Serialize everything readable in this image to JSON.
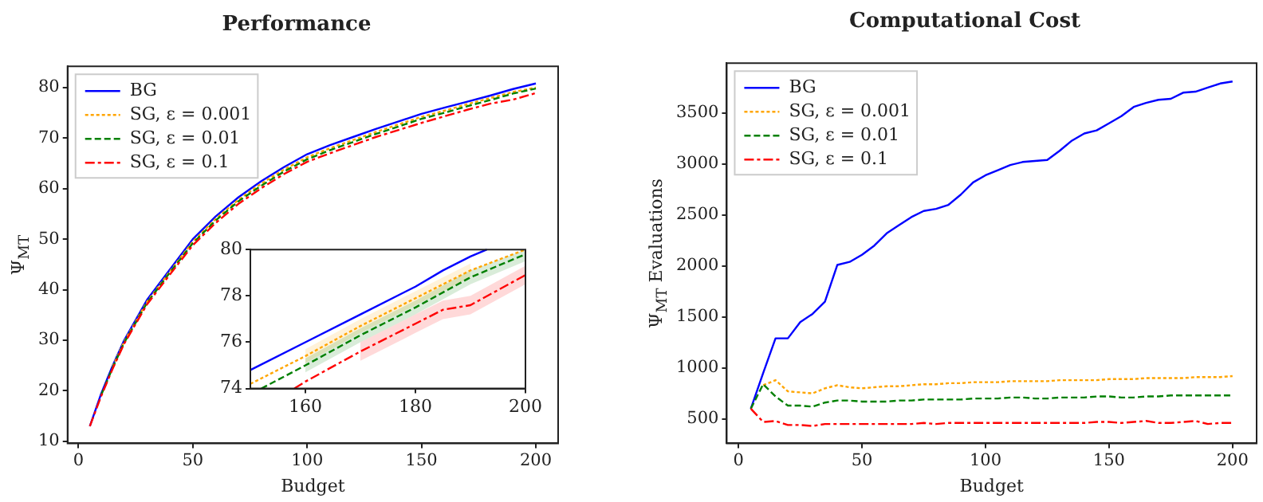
{
  "chart_data": [
    {
      "type": "line",
      "title": "Performance",
      "xlabel": "Budget",
      "ylabel": "Ψ$_{MT}$",
      "x": [
        5,
        10,
        15,
        20,
        30,
        40,
        50,
        60,
        70,
        80,
        90,
        100,
        110,
        120,
        130,
        140,
        150,
        160,
        170,
        180,
        190,
        200
      ],
      "xlim": [
        -4.75,
        209.75
      ],
      "ylim": [
        9.6,
        84.2
      ],
      "xticks": [
        0,
        50,
        100,
        150,
        200
      ],
      "yticks": [
        10,
        20,
        30,
        40,
        50,
        60,
        70,
        80
      ],
      "legend": "top left",
      "grid": false,
      "series": [
        {
          "name": "BG",
          "color": "#0000ff",
          "line_style": "solid",
          "values": [
            13,
            19.5,
            25,
            30,
            38,
            44,
            50,
            54.5,
            58.3,
            61.5,
            64.3,
            66.8,
            68.6,
            70.2,
            71.8,
            73.3,
            74.8,
            76,
            77.2,
            78.4,
            79.7,
            80.8
          ]
        },
        {
          "name": "SG, ε = 0.001",
          "color": "#ffa500",
          "line_style": "dotted",
          "values": [
            null,
            null,
            24.8,
            29.7,
            37.6,
            43.6,
            49.5,
            54,
            57.8,
            61,
            63.8,
            66.2,
            68,
            69.6,
            71.2,
            72.7,
            74.2,
            75.4,
            76.7,
            77.9,
            79.1,
            80
          ]
        },
        {
          "name": "SG, ε = 0.01",
          "color": "#008000",
          "line_style": "dashed",
          "values": [
            null,
            19.2,
            24.6,
            29.5,
            37.4,
            43.4,
            49.2,
            53.7,
            57.5,
            60.6,
            63.4,
            65.8,
            67.6,
            69.2,
            70.8,
            72.3,
            73.8,
            75,
            76.3,
            77.5,
            78.8,
            79.8
          ]
        },
        {
          "name": "SG, ε = 0.1",
          "color": "#ff0000",
          "line_style": "dashdot",
          "values": [
            13,
            19,
            24.4,
            29.3,
            37.1,
            43,
            48.8,
            53.2,
            57,
            60.1,
            62.9,
            65.3,
            67,
            68.6,
            70.2,
            71.6,
            73,
            74.3,
            75.6,
            76.8,
            77.6,
            78.9
          ]
        }
      ]
    },
    {
      "type": "line",
      "xlim": [
        150,
        200
      ],
      "ylim": [
        74,
        80
      ],
      "xticks": [
        160,
        180,
        200
      ],
      "yticks": [
        74,
        76,
        78,
        80
      ],
      "grid": false,
      "series": [
        {
          "color": "#0000ff",
          "line_style": "solid",
          "x": [
            150,
            160,
            170,
            180,
            185,
            190,
            193
          ],
          "values": [
            74.8,
            76,
            77.2,
            78.4,
            79.1,
            79.7,
            80
          ]
        },
        {
          "color": "#ffa500",
          "line_style": "dotted",
          "x": [
            150,
            160,
            170,
            180,
            190,
            200
          ],
          "values": [
            74.2,
            75.4,
            76.7,
            77.9,
            79.1,
            80
          ],
          "lower": [
            null,
            75.1,
            76.4,
            77.6,
            78.8,
            null
          ],
          "upper": [
            null,
            75.7,
            77,
            78.2,
            79.4,
            null
          ]
        },
        {
          "color": "#008000",
          "line_style": "dashed",
          "x": [
            152,
            160,
            170,
            180,
            190,
            200
          ],
          "values": [
            74,
            75,
            76.3,
            77.5,
            78.8,
            79.8
          ],
          "lower": [
            null,
            74.7,
            76,
            77.2,
            78.5,
            79.5
          ],
          "upper": [
            null,
            75.3,
            76.6,
            77.8,
            79.1,
            80
          ]
        },
        {
          "color": "#ff0000",
          "line_style": "dashdot",
          "x": [
            158,
            160,
            170,
            180,
            185,
            190,
            200
          ],
          "values": [
            74,
            74.3,
            75.6,
            76.8,
            77.4,
            77.6,
            78.9
          ],
          "lower": [
            null,
            null,
            75.2,
            76.4,
            77,
            77.2,
            78.5
          ],
          "upper": [
            null,
            null,
            76,
            77.2,
            77.8,
            78,
            79.3
          ]
        }
      ]
    },
    {
      "type": "line",
      "title": "Computational Cost",
      "xlabel": "Budget",
      "ylabel": "Ψ$_{MT}$ Evaluations",
      "x": [
        5,
        10,
        15,
        20,
        25,
        30,
        35,
        40,
        45,
        50,
        55,
        60,
        65,
        70,
        75,
        80,
        85,
        90,
        95,
        100,
        105,
        110,
        115,
        120,
        125,
        130,
        135,
        140,
        145,
        150,
        155,
        160,
        165,
        170,
        175,
        180,
        185,
        190,
        195,
        200
      ],
      "xlim": [
        -4.75,
        209.75
      ],
      "ylim": [
        260,
        3990
      ],
      "xticks": [
        0,
        50,
        100,
        150,
        200
      ],
      "yticks": [
        500,
        1000,
        1500,
        2000,
        2500,
        3000,
        3500
      ],
      "legend": "top left",
      "grid": false,
      "series": [
        {
          "name": "BG",
          "color": "#0000ff",
          "line_style": "solid",
          "values": [
            600,
            950,
            1290,
            1290,
            1450,
            1530,
            1650,
            2010,
            2040,
            2110,
            2200,
            2320,
            2400,
            2480,
            2540,
            2560,
            2600,
            2700,
            2820,
            2890,
            2940,
            2990,
            3020,
            3030,
            3040,
            3130,
            3230,
            3300,
            3330,
            3400,
            3470,
            3560,
            3600,
            3630,
            3640,
            3700,
            3710,
            3750,
            3790,
            3810
          ]
        },
        {
          "name": "SG, ε = 0.001",
          "color": "#ffa500",
          "line_style": "dotted",
          "values": [
            null,
            830,
            880,
            770,
            760,
            750,
            800,
            830,
            810,
            800,
            810,
            820,
            820,
            830,
            840,
            840,
            850,
            850,
            860,
            860,
            860,
            870,
            870,
            870,
            870,
            880,
            880,
            880,
            880,
            890,
            890,
            890,
            900,
            900,
            900,
            900,
            910,
            910,
            910,
            920
          ]
        },
        {
          "name": "SG, ε = 0.01",
          "color": "#008000",
          "line_style": "dashed",
          "values": [
            600,
            840,
            720,
            630,
            630,
            620,
            660,
            680,
            680,
            670,
            670,
            670,
            680,
            680,
            690,
            690,
            690,
            690,
            700,
            700,
            700,
            710,
            710,
            700,
            700,
            710,
            710,
            710,
            720,
            720,
            710,
            710,
            720,
            720,
            730,
            730,
            730,
            730,
            730,
            730
          ]
        },
        {
          "name": "SG, ε = 0.1",
          "color": "#ff0000",
          "line_style": "dashdot",
          "values": [
            600,
            470,
            480,
            440,
            440,
            430,
            450,
            450,
            450,
            450,
            450,
            450,
            450,
            450,
            460,
            450,
            460,
            460,
            460,
            460,
            460,
            460,
            460,
            460,
            460,
            460,
            460,
            460,
            470,
            470,
            460,
            470,
            480,
            460,
            460,
            470,
            480,
            450,
            460,
            460
          ]
        }
      ]
    }
  ]
}
